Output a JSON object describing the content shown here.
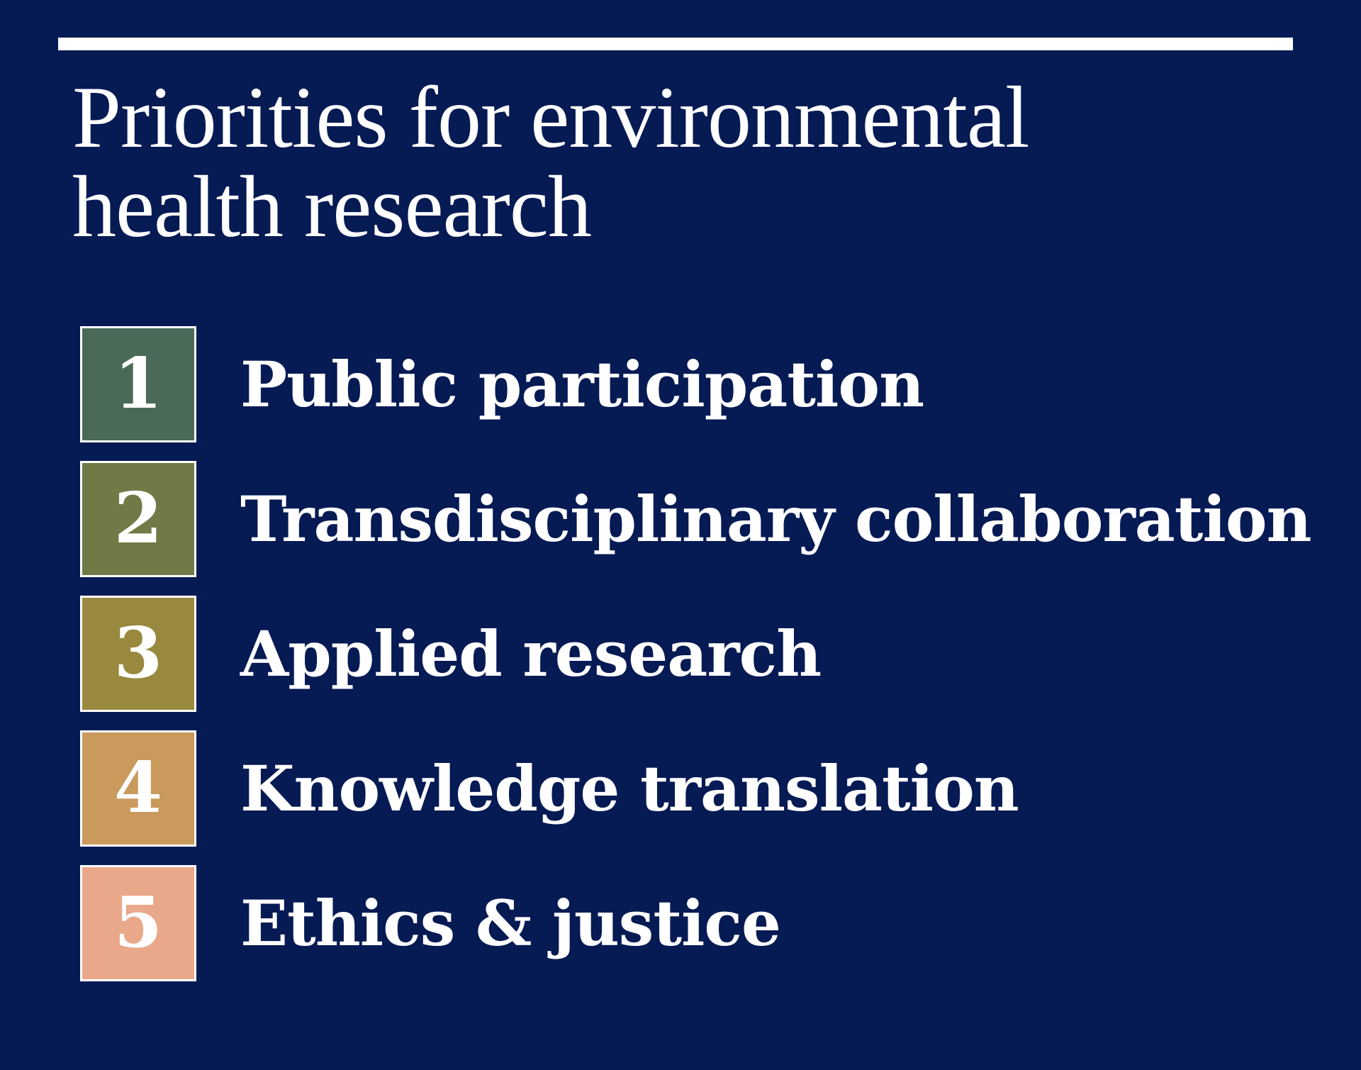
{
  "title": {
    "line1": "Priorities for environmental",
    "line2": "health research"
  },
  "priorities": [
    {
      "number": "1",
      "label": "Public participation",
      "color": "#4a6a57"
    },
    {
      "number": "2",
      "label": "Transdisciplinary collaboration",
      "color": "#6f7a46"
    },
    {
      "number": "3",
      "label": "Applied research",
      "color": "#98893f"
    },
    {
      "number": "4",
      "label": "Knowledge translation",
      "color": "#c99a5c"
    },
    {
      "number": "5",
      "label": "Ethics & justice",
      "color": "#eaa88a"
    }
  ]
}
